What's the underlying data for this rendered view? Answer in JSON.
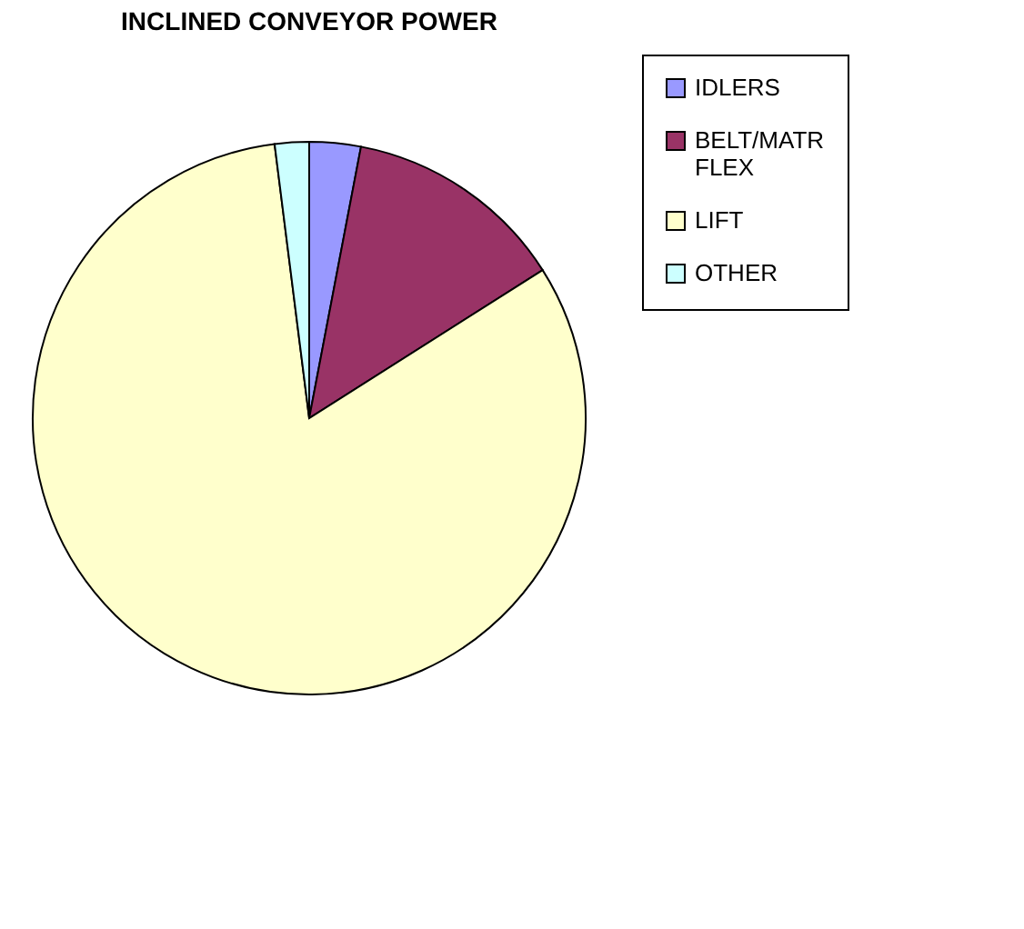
{
  "chart_data": {
    "type": "pie",
    "title": "INCLINED CONVEYOR POWER",
    "categories": [
      "IDLERS",
      "BELT/MATR FLEX",
      "LIFT",
      "OTHER"
    ],
    "values": [
      3,
      13,
      82,
      2
    ],
    "colors": [
      "#9999ff",
      "#993366",
      "#ffffcc",
      "#ccffff"
    ],
    "legend": "right"
  }
}
